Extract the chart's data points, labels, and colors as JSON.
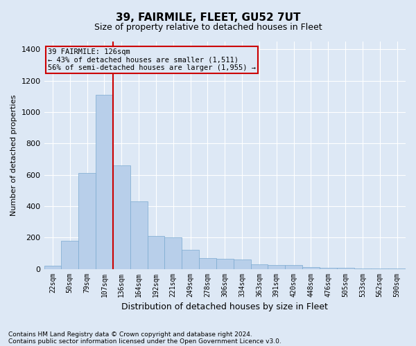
{
  "title": "39, FAIRMILE, FLEET, GU52 7UT",
  "subtitle": "Size of property relative to detached houses in Fleet",
  "xlabel": "Distribution of detached houses by size in Fleet",
  "ylabel": "Number of detached properties",
  "footnote1": "Contains HM Land Registry data © Crown copyright and database right 2024.",
  "footnote2": "Contains public sector information licensed under the Open Government Licence v3.0.",
  "annotation_title": "39 FAIRMILE: 126sqm",
  "annotation_line1": "← 43% of detached houses are smaller (1,511)",
  "annotation_line2": "56% of semi-detached houses are larger (1,955) →",
  "bar_color": "#b8cfea",
  "bar_edge_color": "#7aaad0",
  "marker_color": "#cc0000",
  "annotation_box_color": "#cc0000",
  "bg_color": "#dde8f5",
  "grid_color": "#ffffff",
  "categories": [
    "22sqm",
    "50sqm",
    "79sqm",
    "107sqm",
    "136sqm",
    "164sqm",
    "192sqm",
    "221sqm",
    "249sqm",
    "278sqm",
    "306sqm",
    "334sqm",
    "363sqm",
    "391sqm",
    "420sqm",
    "448sqm",
    "476sqm",
    "505sqm",
    "533sqm",
    "562sqm",
    "590sqm"
  ],
  "values": [
    20,
    180,
    610,
    1110,
    660,
    430,
    210,
    200,
    120,
    70,
    65,
    60,
    30,
    25,
    25,
    12,
    8,
    5,
    2,
    1,
    1
  ],
  "marker_bin_index": 3,
  "ylim": [
    0,
    1450
  ],
  "yticks": [
    0,
    200,
    400,
    600,
    800,
    1000,
    1200,
    1400
  ],
  "title_fontsize": 11,
  "subtitle_fontsize": 9,
  "ylabel_fontsize": 8,
  "xlabel_fontsize": 9,
  "tick_fontsize": 7,
  "footnote_fontsize": 6.5
}
